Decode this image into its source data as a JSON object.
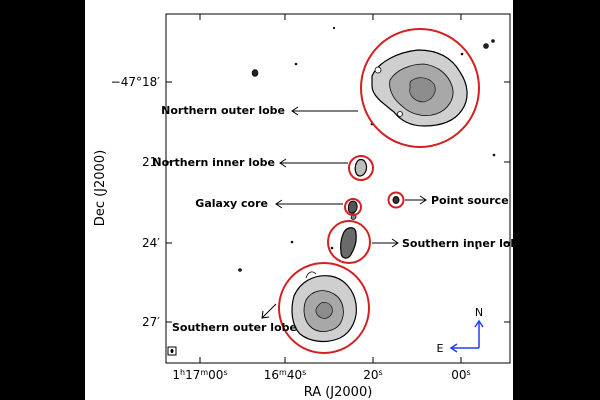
{
  "figure": {
    "axes": {
      "xlabel": "RA (J2000)",
      "ylabel": "Dec (J2000)",
      "x_ticks": [
        {
          "main": "1",
          "sup1": "h",
          "mid": "17",
          "sup2": "m",
          "end": "00",
          "sup3": "s"
        },
        {
          "main": "16",
          "sup1": "m",
          "mid": "40",
          "sup2": "s"
        },
        {
          "main": "20",
          "sup1": "s"
        },
        {
          "main": "00",
          "sup1": "s"
        }
      ],
      "y_ticks": [
        {
          "main": "−47°18′"
        },
        {
          "main": "21′"
        },
        {
          "main": "24′"
        },
        {
          "main": "27′"
        }
      ]
    },
    "annotations": {
      "northern_outer_lobe": "Northern outer lobe",
      "northern_inner_lobe": "Northern inner lobe",
      "galaxy_core": "Galaxy core",
      "point_source": "Point source",
      "southern_inner_lobe": "Southern inner lobe",
      "southern_outer_lobe": "Southern outer lobe"
    },
    "compass": {
      "north": "N",
      "east": "E",
      "color": "#1f3fff"
    },
    "circle_color": "#d42020"
  }
}
